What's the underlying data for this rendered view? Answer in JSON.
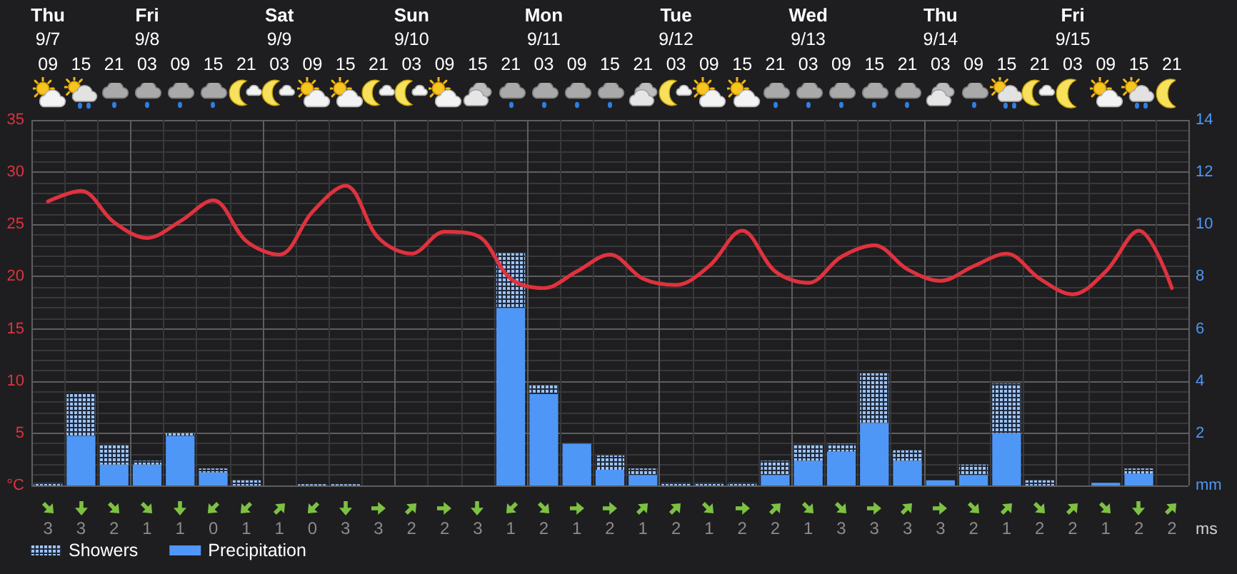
{
  "chart_data": [
    {
      "type": "bar",
      "categories": [
        "Thu\n9/7\n09",
        "15",
        "21",
        "Fri\n9/8\n03",
        "09",
        "15",
        "21",
        "Sat\n9/9\n03",
        "09",
        "15",
        "21",
        "Sun\n9/10\n03",
        "09",
        "15",
        "21",
        "Mon\n9/11\n03",
        "09",
        "15",
        "21",
        "Tue\n9/12\n03",
        "09",
        "15",
        "21",
        "Wed\n9/13\n03",
        "09",
        "15",
        "21",
        "Thu\n9/14\n03",
        "09",
        "15",
        "21",
        "Fri\n9/15\n03",
        "09",
        "15",
        "21"
      ],
      "series": [
        {
          "name": "Precipitation",
          "type": "bar",
          "axis": "y2",
          "color": "#4f97f7",
          "values": [
            null,
            1.9,
            0.8,
            0.8,
            1.9,
            0.5,
            null,
            null,
            null,
            null,
            null,
            null,
            null,
            null,
            6.8,
            3.5,
            1.6,
            0.6,
            0.4,
            null,
            null,
            null,
            0.4,
            0.95,
            1.3,
            2.4,
            0.95,
            0.2,
            0.4,
            2.0,
            null,
            null,
            0.1,
            0.45,
            null
          ]
        },
        {
          "name": "Showers",
          "type": "bar",
          "axis": "y2",
          "color": "#9fc3f2",
          "values": [
            0.1,
            1.6,
            0.75,
            0.15,
            0.1,
            0.15,
            0.2,
            null,
            0.05,
            0.05,
            null,
            null,
            null,
            null,
            2.1,
            0.35,
            null,
            0.55,
            0.25,
            0.1,
            0.1,
            0.1,
            0.55,
            0.6,
            0.3,
            1.9,
            0.4,
            null,
            0.4,
            1.9,
            0.2,
            null,
            null,
            0.2,
            null
          ]
        },
        {
          "type": "line",
          "color": "#e0323e",
          "values": [
            27.2,
            28.2,
            25.2,
            23.7,
            25.3,
            27.3,
            23.4,
            22.1,
            26.2,
            28.7,
            23.7,
            22.2,
            24.3,
            23.9,
            19.8,
            18.9,
            20.5,
            22.1,
            19.8,
            19.2,
            21.0,
            24.4,
            20.5,
            19.4,
            21.9,
            23.0,
            20.7,
            19.6,
            21.0,
            22.2,
            19.8,
            18.3,
            20.5,
            24.4,
            18.9
          ]
        }
      ],
      "stacked": true,
      "ylim": [
        0,
        35
      ],
      "yticks": [
        {
          "value": 0,
          "label": "°C"
        },
        5,
        10,
        15,
        20,
        25,
        30,
        35
      ],
      "y2lim": [
        0,
        14
      ],
      "y2ticks": [
        {
          "value": 0,
          "label": "mm"
        },
        2,
        4,
        6,
        8,
        10,
        12,
        14
      ],
      "grid": true,
      "legend": "bottom left",
      "line_style": "solid"
    },
    {
      "type": "other",
      "values": [
        3,
        3,
        2,
        1,
        1,
        0,
        1,
        1,
        0,
        3,
        3,
        2,
        2,
        3,
        1,
        2,
        1,
        2,
        1,
        2,
        1,
        2,
        2,
        1,
        3,
        3,
        3,
        3,
        2,
        1,
        2,
        2,
        1,
        2,
        2
      ],
      "data_labels": true,
      "annotations": [
        "ms"
      ]
    }
  ]
}
